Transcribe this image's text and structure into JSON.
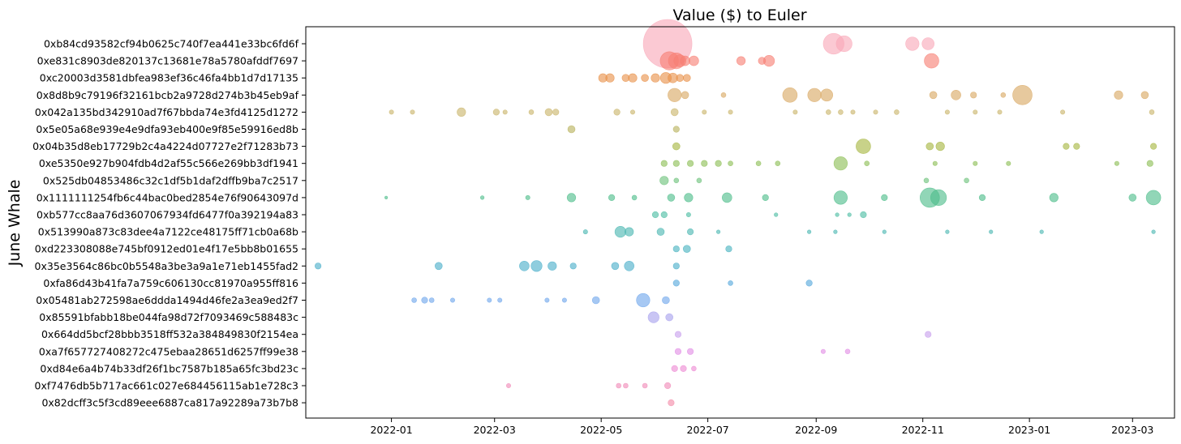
{
  "chart_data": {
    "type": "scatter",
    "title": "Value ($) to Euler",
    "xlabel": "",
    "ylabel": "June Whale",
    "x_ticks": [
      "2022-01",
      "2022-03",
      "2022-05",
      "2022-07",
      "2022-09",
      "2022-11",
      "2023-01",
      "2023-03"
    ],
    "xlim": [
      "2021-11-13",
      "2023-03-25"
    ],
    "grid": false,
    "legend": "none",
    "size_encodes": "Value ($)",
    "categories": [
      "0xb84cd93582cf94b0625c740f7ea441e33bc6fd6f",
      "0xe831c8903de820137c13681e78a5780afddf7697",
      "0xc20003d3581dbfea983ef36c46fa4bb1d7d17135",
      "0x8d8b9c79196f32161bcb2a9728d274b3b45eb9af",
      "0x042a135bd342910ad7f67bbda74e3fd4125d1272",
      "0x5e05a68e939e4e9dfa93eb400e9f85e59916ed8b",
      "0x04b35d8eb17729b2c4a4224d07727e2f71283b73",
      "0xe5350e927b904fdb4d2af55c566e269bb3df1941",
      "0x525db04853486c32c1df5b1daf2dffb9ba7c2517",
      "0x1111111254fb6c44bac0bed2854e76f90643097d",
      "0xb577cc8aa76d3607067934fd6477f0a392194a83",
      "0x513990a873c83dee4a7122ce48175ff71cb0a68b",
      "0xd223308088e745bf0912ed01e4f17e5bb8b01655",
      "0x35e3564c86bc0b5548a3be3a9a1e71eb1455fad2",
      "0xfa86d43b41fa7a759c606130cc81970a955ff816",
      "0x05481ab272598ae6ddda1494d46fe2a3ea9ed2f7",
      "0x85591bfabb18be044fa98d72f7093469c588483c",
      "0x664dd5bcf28bbb3518ff532a384849830f2154ea",
      "0xa7f657727408272c475ebaa28651d6257ff99e38",
      "0xd84e6a4b74b33df26f1bc7587b185a65fc3bd23c",
      "0xf7476db5b717ac661c027e684456115ab1e728c3",
      "0x82dcff3c5f3cd89eee6887ca817a92289a73b7b8"
    ],
    "colors": [
      "#f9a8b8",
      "#f77f74",
      "#e8914a",
      "#d9a863",
      "#c9b46a",
      "#b8b25c",
      "#a6b640",
      "#8dbf55",
      "#6cc17a",
      "#4dbd8a",
      "#4cbda3",
      "#4ab7b2",
      "#49b3c0",
      "#4aafca",
      "#56a8dc",
      "#6fa7ec",
      "#a8a1ee",
      "#c8a0ee",
      "#e28ee5",
      "#ee8ad4",
      "#f08ab8",
      "#f38aa8"
    ],
    "series": [
      {
        "category_index": 0,
        "points": [
          [
            "2022-06-08",
            20.0
          ],
          [
            "2022-09-11",
            8.5
          ],
          [
            "2022-09-17",
            6.5
          ],
          [
            "2022-10-26",
            5.5
          ],
          [
            "2022-11-04",
            5.0
          ]
        ]
      },
      {
        "category_index": 1,
        "points": [
          [
            "2022-06-09",
            7.5
          ],
          [
            "2022-06-13",
            6.5
          ],
          [
            "2022-06-15",
            5.0
          ],
          [
            "2022-06-18",
            4.0
          ],
          [
            "2022-06-23",
            4.0
          ],
          [
            "2022-07-20",
            3.5
          ],
          [
            "2022-08-01",
            3.0
          ],
          [
            "2022-08-05",
            4.5
          ],
          [
            "2022-11-06",
            6.0
          ]
        ]
      },
      {
        "category_index": 2,
        "points": [
          [
            "2022-05-02",
            3.5
          ],
          [
            "2022-05-06",
            3.5
          ],
          [
            "2022-05-15",
            3.0
          ],
          [
            "2022-05-19",
            3.5
          ],
          [
            "2022-05-26",
            3.0
          ],
          [
            "2022-06-01",
            3.5
          ],
          [
            "2022-06-07",
            4.5
          ],
          [
            "2022-06-11",
            4.0
          ],
          [
            "2022-06-15",
            3.0
          ],
          [
            "2022-06-19",
            3.0
          ]
        ]
      },
      {
        "category_index": 3,
        "points": [
          [
            "2022-06-12",
            5.5
          ],
          [
            "2022-06-18",
            3.0
          ],
          [
            "2022-07-10",
            2.0
          ],
          [
            "2022-08-17",
            6.0
          ],
          [
            "2022-08-31",
            5.5
          ],
          [
            "2022-09-07",
            5.0
          ],
          [
            "2022-11-07",
            3.0
          ],
          [
            "2022-11-20",
            4.0
          ],
          [
            "2022-11-30",
            2.5
          ],
          [
            "2022-12-17",
            2.0
          ],
          [
            "2022-12-28",
            8.0
          ],
          [
            "2023-02-21",
            3.5
          ],
          [
            "2023-03-08",
            3.0
          ]
        ]
      },
      {
        "category_index": 4,
        "points": [
          [
            "2022-01-01",
            1.8
          ],
          [
            "2022-01-13",
            1.8
          ],
          [
            "2022-02-10",
            3.5
          ],
          [
            "2022-03-02",
            2.5
          ],
          [
            "2022-03-07",
            1.8
          ],
          [
            "2022-03-22",
            2.0
          ],
          [
            "2022-04-01",
            3.0
          ],
          [
            "2022-04-05",
            2.5
          ],
          [
            "2022-05-10",
            2.5
          ],
          [
            "2022-05-19",
            1.8
          ],
          [
            "2022-06-12",
            3.0
          ],
          [
            "2022-06-29",
            1.8
          ],
          [
            "2022-07-14",
            1.8
          ],
          [
            "2022-08-20",
            1.8
          ],
          [
            "2022-09-08",
            2.0
          ],
          [
            "2022-09-15",
            2.0
          ],
          [
            "2022-09-22",
            1.8
          ],
          [
            "2022-10-05",
            1.8
          ],
          [
            "2022-10-17",
            2.0
          ],
          [
            "2022-11-15",
            1.8
          ],
          [
            "2022-12-01",
            1.8
          ],
          [
            "2022-12-15",
            1.8
          ],
          [
            "2023-01-20",
            1.8
          ],
          [
            "2023-03-12",
            2.0
          ]
        ]
      },
      {
        "category_index": 5,
        "points": [
          [
            "2022-04-14",
            3.0
          ],
          [
            "2022-06-13",
            2.5
          ]
        ]
      },
      {
        "category_index": 6,
        "points": [
          [
            "2022-06-13",
            3.0
          ],
          [
            "2022-09-28",
            6.0
          ],
          [
            "2022-11-05",
            3.0
          ],
          [
            "2022-11-11",
            3.5
          ],
          [
            "2023-01-22",
            2.5
          ],
          [
            "2023-01-28",
            2.5
          ],
          [
            "2023-03-13",
            2.5
          ]
        ]
      },
      {
        "category_index": 7,
        "points": [
          [
            "2022-06-06",
            2.5
          ],
          [
            "2022-06-13",
            2.5
          ],
          [
            "2022-06-21",
            2.5
          ],
          [
            "2022-06-29",
            2.5
          ],
          [
            "2022-07-07",
            2.5
          ],
          [
            "2022-07-14",
            2.0
          ],
          [
            "2022-07-30",
            2.0
          ],
          [
            "2022-08-10",
            2.0
          ],
          [
            "2022-09-15",
            5.5
          ],
          [
            "2022-09-30",
            2.0
          ],
          [
            "2022-11-08",
            1.8
          ],
          [
            "2022-12-01",
            1.8
          ],
          [
            "2022-12-20",
            1.8
          ],
          [
            "2023-02-20",
            1.8
          ],
          [
            "2023-03-11",
            2.5
          ]
        ]
      },
      {
        "category_index": 8,
        "points": [
          [
            "2022-06-06",
            3.5
          ],
          [
            "2022-06-13",
            2.0
          ],
          [
            "2022-06-26",
            2.0
          ],
          [
            "2022-11-03",
            2.0
          ],
          [
            "2022-11-26",
            2.0
          ]
        ]
      },
      {
        "category_index": 9,
        "points": [
          [
            "2021-12-29",
            1.2
          ],
          [
            "2022-02-22",
            1.5
          ],
          [
            "2022-03-20",
            1.8
          ],
          [
            "2022-04-14",
            3.5
          ],
          [
            "2022-05-07",
            2.5
          ],
          [
            "2022-05-20",
            2.0
          ],
          [
            "2022-06-10",
            3.0
          ],
          [
            "2022-06-20",
            3.5
          ],
          [
            "2022-07-12",
            4.0
          ],
          [
            "2022-08-03",
            2.5
          ],
          [
            "2022-09-15",
            5.5
          ],
          [
            "2022-10-10",
            2.5
          ],
          [
            "2022-11-05",
            8.0
          ],
          [
            "2022-11-10",
            6.5
          ],
          [
            "2022-12-05",
            2.5
          ],
          [
            "2023-01-15",
            3.5
          ],
          [
            "2023-03-01",
            3.0
          ],
          [
            "2023-03-13",
            6.0
          ]
        ]
      },
      {
        "category_index": 10,
        "points": [
          [
            "2022-06-01",
            2.5
          ],
          [
            "2022-06-06",
            2.5
          ],
          [
            "2022-06-20",
            1.8
          ],
          [
            "2022-08-09",
            1.5
          ],
          [
            "2022-09-13",
            1.5
          ],
          [
            "2022-09-20",
            1.5
          ],
          [
            "2022-09-28",
            2.5
          ]
        ]
      },
      {
        "category_index": 11,
        "points": [
          [
            "2022-04-22",
            1.8
          ],
          [
            "2022-05-12",
            4.5
          ],
          [
            "2022-05-17",
            3.5
          ],
          [
            "2022-06-04",
            3.0
          ],
          [
            "2022-06-21",
            2.5
          ],
          [
            "2022-07-07",
            1.5
          ],
          [
            "2022-08-28",
            1.5
          ],
          [
            "2022-09-12",
            1.5
          ],
          [
            "2022-10-10",
            1.5
          ],
          [
            "2022-11-15",
            1.5
          ],
          [
            "2022-12-10",
            1.5
          ],
          [
            "2023-01-08",
            1.5
          ],
          [
            "2023-03-13",
            1.5
          ]
        ]
      },
      {
        "category_index": 12,
        "points": [
          [
            "2022-06-13",
            2.5
          ],
          [
            "2022-06-19",
            3.0
          ],
          [
            "2022-07-13",
            2.5
          ]
        ]
      },
      {
        "category_index": 13,
        "points": [
          [
            "2021-11-20",
            2.5
          ],
          [
            "2022-01-28",
            3.0
          ],
          [
            "2022-03-18",
            4.0
          ],
          [
            "2022-03-25",
            4.5
          ],
          [
            "2022-04-03",
            3.5
          ],
          [
            "2022-04-15",
            2.5
          ],
          [
            "2022-05-09",
            3.0
          ],
          [
            "2022-05-17",
            4.0
          ],
          [
            "2022-06-13",
            2.5
          ]
        ]
      },
      {
        "category_index": 14,
        "points": [
          [
            "2022-06-13",
            2.5
          ],
          [
            "2022-07-14",
            2.0
          ],
          [
            "2022-08-28",
            2.5
          ]
        ]
      },
      {
        "category_index": 15,
        "points": [
          [
            "2022-01-14",
            2.0
          ],
          [
            "2022-01-20",
            2.5
          ],
          [
            "2022-01-24",
            2.0
          ],
          [
            "2022-02-05",
            1.8
          ],
          [
            "2022-02-26",
            1.8
          ],
          [
            "2022-03-04",
            1.8
          ],
          [
            "2022-03-31",
            1.8
          ],
          [
            "2022-04-10",
            1.8
          ],
          [
            "2022-04-28",
            3.0
          ],
          [
            "2022-05-25",
            5.5
          ],
          [
            "2022-06-07",
            3.0
          ]
        ]
      },
      {
        "category_index": 16,
        "points": [
          [
            "2022-05-31",
            4.5
          ],
          [
            "2022-06-09",
            3.0
          ]
        ]
      },
      {
        "category_index": 17,
        "points": [
          [
            "2022-06-14",
            2.5
          ],
          [
            "2022-11-04",
            2.5
          ]
        ]
      },
      {
        "category_index": 18,
        "points": [
          [
            "2022-06-14",
            2.5
          ],
          [
            "2022-06-21",
            2.5
          ],
          [
            "2022-09-05",
            1.8
          ],
          [
            "2022-09-19",
            2.0
          ]
        ]
      },
      {
        "category_index": 19,
        "points": [
          [
            "2022-06-12",
            2.5
          ],
          [
            "2022-06-17",
            2.5
          ],
          [
            "2022-06-23",
            2.0
          ]
        ]
      },
      {
        "category_index": 20,
        "points": [
          [
            "2022-03-09",
            1.8
          ],
          [
            "2022-05-11",
            2.0
          ],
          [
            "2022-05-15",
            2.0
          ],
          [
            "2022-05-26",
            2.0
          ],
          [
            "2022-06-08",
            2.5
          ]
        ]
      },
      {
        "category_index": 21,
        "points": [
          [
            "2022-06-10",
            2.5
          ]
        ]
      }
    ]
  }
}
